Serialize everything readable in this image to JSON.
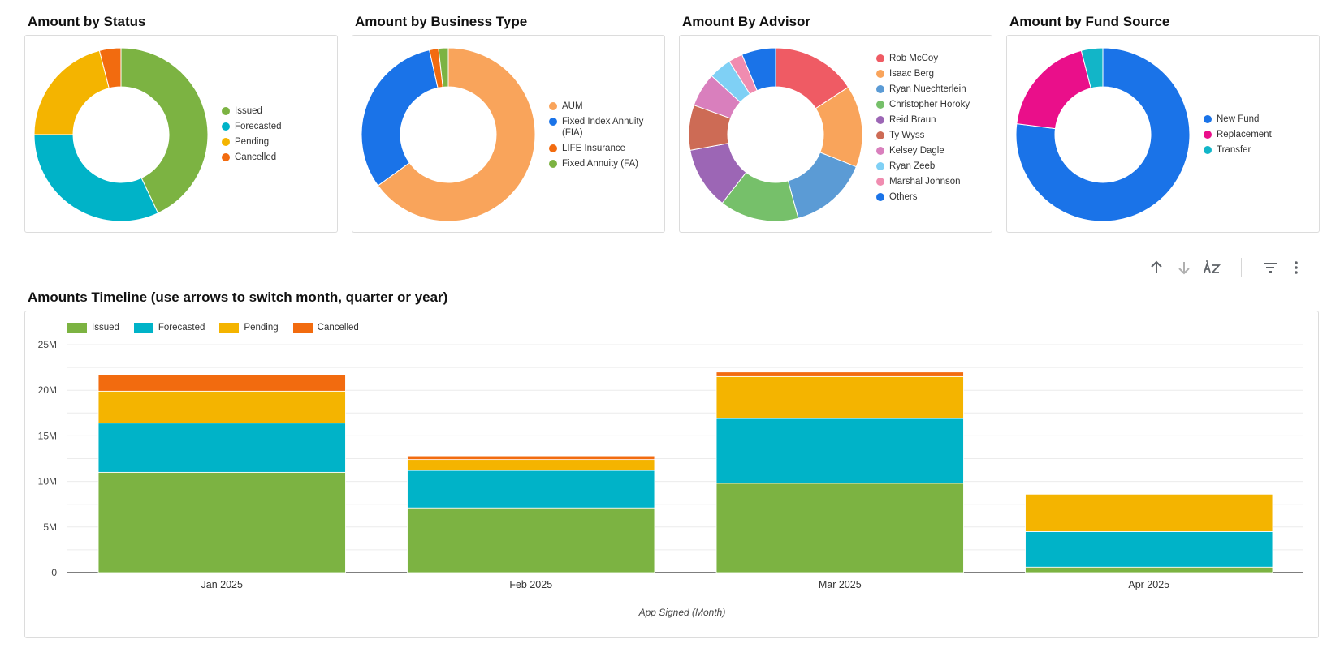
{
  "donuts": [
    {
      "title": "Amount by Status",
      "legend": [
        {
          "label": "Issued",
          "color": "#7cb342"
        },
        {
          "label": "Forecasted",
          "color": "#00b3c8"
        },
        {
          "label": "Pending",
          "color": "#f4b400"
        },
        {
          "label": "Cancelled",
          "color": "#f26b0f"
        }
      ]
    },
    {
      "title": "Amount by Business Type",
      "legend": [
        {
          "label": "AUM",
          "color": "#f9a45b"
        },
        {
          "label": "Fixed Index Annuity (FIA)",
          "color": "#1a73e8"
        },
        {
          "label": "LIFE Insurance",
          "color": "#f26b0f"
        },
        {
          "label": "Fixed Annuity (FA)",
          "color": "#7cb342"
        }
      ]
    },
    {
      "title": "Amount By Advisor",
      "legend": [
        {
          "label": "Rob McCoy",
          "color": "#ef5b64"
        },
        {
          "label": "Isaac Berg",
          "color": "#f9a45b"
        },
        {
          "label": "Ryan Nuechterlein",
          "color": "#5b9bd5"
        },
        {
          "label": "Christopher Horoky",
          "color": "#76c06a"
        },
        {
          "label": "Reid Braun",
          "color": "#9c66b5"
        },
        {
          "label": "Ty Wyss",
          "color": "#cd6b55"
        },
        {
          "label": "Kelsey Dagle",
          "color": "#d97fbd"
        },
        {
          "label": "Ryan Zeeb",
          "color": "#7fd0f5"
        },
        {
          "label": "Marshal Johnson",
          "color": "#f08cb0"
        },
        {
          "label": "Others",
          "color": "#1a73e8"
        }
      ]
    },
    {
      "title": "Amount by Fund Source",
      "legend": [
        {
          "label": "New Fund",
          "color": "#1a73e8"
        },
        {
          "label": "Replacement",
          "color": "#ea0f8a"
        },
        {
          "label": "Transfer",
          "color": "#12b5c8"
        }
      ]
    }
  ],
  "timeline": {
    "title": "Amounts Timeline (use arrows to switch month, quarter or year)",
    "x_title": "App Signed (Month)"
  },
  "toolbar_icons": [
    "arrow-up-icon",
    "arrow-down-icon",
    "sort-az-icon",
    "filter-icon",
    "more-vert-icon"
  ],
  "chart_data": [
    {
      "type": "pie",
      "title": "Amount by Status",
      "donut": true,
      "labels": [
        "Issued",
        "Forecasted",
        "Pending",
        "Cancelled"
      ],
      "values": [
        43,
        32,
        21,
        4
      ],
      "value_unit": "percent (estimated)"
    },
    {
      "type": "pie",
      "title": "Amount by Business Type",
      "donut": true,
      "labels": [
        "AUM",
        "Fixed Index Annuity (FIA)",
        "LIFE Insurance",
        "Fixed Annuity (FA)"
      ],
      "values": [
        65,
        31.5,
        1.7,
        1.8
      ],
      "value_unit": "percent (estimated)"
    },
    {
      "type": "pie",
      "title": "Amount By Advisor",
      "donut": true,
      "labels": [
        "Rob McCoy",
        "Isaac Berg",
        "Ryan Nuechterlein",
        "Christopher Horoky",
        "Reid Braun",
        "Ty Wyss",
        "Kelsey Dagle",
        "Ryan Zeeb",
        "Marshal Johnson",
        "Others"
      ],
      "values": [
        15,
        14.5,
        14,
        14,
        11,
        8,
        6,
        4,
        2.5,
        6
      ],
      "value_unit": "percent (estimated)"
    },
    {
      "type": "pie",
      "title": "Amount by Fund Source",
      "donut": true,
      "labels": [
        "New Fund",
        "Replacement",
        "Transfer"
      ],
      "values": [
        77,
        19,
        4
      ],
      "value_unit": "percent (estimated)"
    },
    {
      "type": "bar",
      "stacked": true,
      "title": "Amounts Timeline (use arrows to switch month, quarter or year)",
      "xlabel": "App Signed (Month)",
      "ylabel": "",
      "categories": [
        "Jan 2025",
        "Feb 2025",
        "Mar 2025",
        "Apr 2025"
      ],
      "series": [
        {
          "name": "Issued",
          "color": "#7cb342",
          "values": [
            11.0,
            7.1,
            9.8,
            0.6
          ]
        },
        {
          "name": "Forecasted",
          "color": "#00b3c8",
          "values": [
            5.4,
            4.1,
            7.1,
            3.9
          ]
        },
        {
          "name": "Pending",
          "color": "#f4b400",
          "values": [
            3.5,
            1.2,
            4.6,
            4.1
          ]
        },
        {
          "name": "Cancelled",
          "color": "#f26b0f",
          "values": [
            1.8,
            0.4,
            0.5,
            0.0
          ]
        }
      ],
      "value_unit": "millions",
      "ylim": [
        0,
        25
      ],
      "yticks": [
        0,
        5,
        10,
        15,
        20,
        25
      ],
      "ytick_labels": [
        "0",
        "5M",
        "10M",
        "15M",
        "20M",
        "25M"
      ],
      "grid": true,
      "legend_position": "top-left"
    }
  ]
}
